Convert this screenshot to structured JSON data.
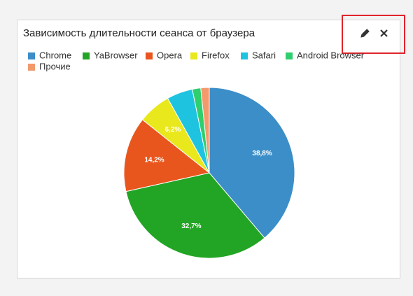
{
  "chart_data": {
    "type": "pie",
    "title": "Зависимость длительности сеанса от браузера",
    "categories": [
      "Chrome",
      "YaBrowser",
      "Opera",
      "Firefox",
      "Safari",
      "Android Browser",
      "Прочие"
    ],
    "values": [
      38.8,
      32.7,
      14.2,
      6.2,
      4.9,
      1.6,
      1.6
    ],
    "value_labels": [
      "38,8%",
      "32,7%",
      "14,2%",
      "6,2%",
      null,
      null,
      null
    ],
    "colors": [
      "#3b8ec8",
      "#22a524",
      "#e9561d",
      "#e9e81c",
      "#1ec4df",
      "#2fcf6d",
      "#f39a6c"
    ],
    "legend": "top"
  }
}
